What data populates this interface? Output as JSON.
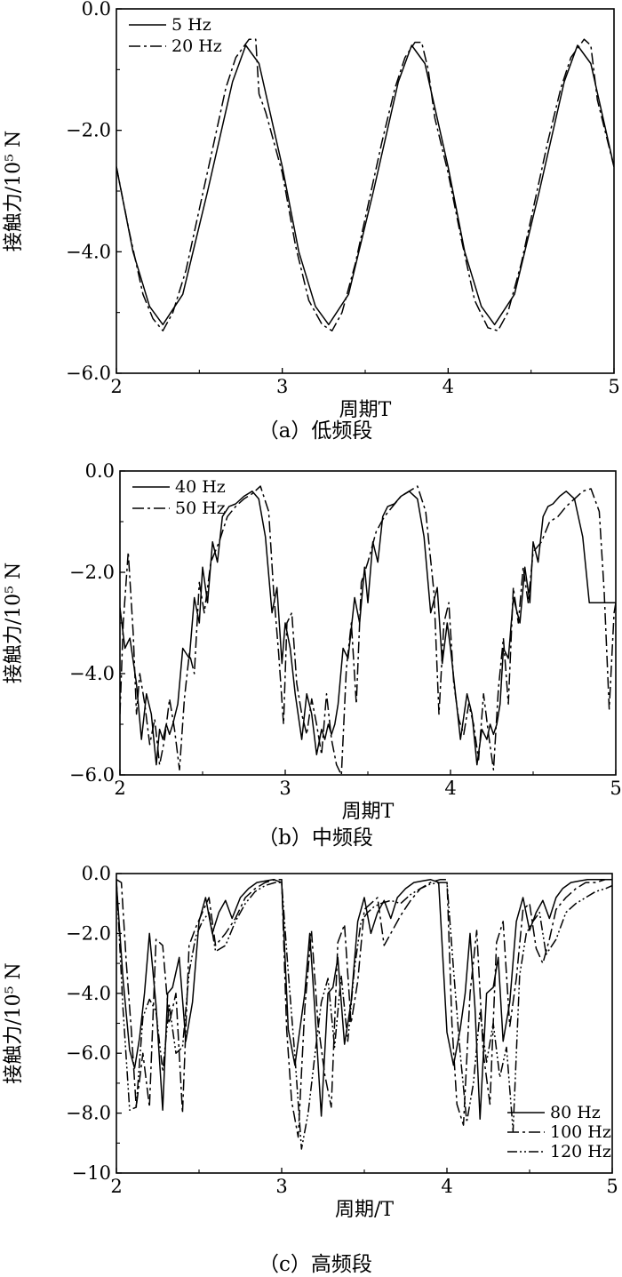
{
  "chart_data": [
    {
      "type": "line",
      "caption": "（a）低频段",
      "xlabel": "周期T",
      "ylabel": "接触力/10⁵ N",
      "xlim": [
        2,
        5
      ],
      "ylim": [
        -6.0,
        0.0
      ],
      "xticks": [
        "2",
        "3",
        "4",
        "5"
      ],
      "yticks": [
        "0.0",
        "−2.0",
        "−4.0",
        "−6.0"
      ],
      "legend_position": "top-left",
      "series": [
        {
          "name": "5 Hz",
          "style": "solid",
          "x": [
            2.0,
            2.1,
            2.2,
            2.28,
            2.4,
            2.55,
            2.7,
            2.78,
            2.86,
            3.0,
            3.1,
            3.2,
            3.28,
            3.4,
            3.55,
            3.7,
            3.78,
            3.86,
            4.0,
            4.1,
            4.2,
            4.28,
            4.4,
            4.55,
            4.7,
            4.78,
            4.86,
            5.0
          ],
          "values": [
            -2.6,
            -4.0,
            -4.9,
            -5.2,
            -4.7,
            -3.0,
            -1.2,
            -0.6,
            -0.9,
            -2.6,
            -4.0,
            -4.9,
            -5.2,
            -4.7,
            -3.0,
            -1.2,
            -0.6,
            -0.9,
            -2.6,
            -4.0,
            -4.9,
            -5.2,
            -4.7,
            -3.0,
            -1.2,
            -0.6,
            -0.9,
            -2.6
          ]
        },
        {
          "name": "20 Hz",
          "style": "dashdot",
          "x": [
            2.0,
            2.08,
            2.16,
            2.22,
            2.28,
            2.34,
            2.42,
            2.5,
            2.58,
            2.66,
            2.72,
            2.8,
            2.84,
            2.86,
            2.9,
            3.0,
            3.08,
            3.16,
            3.24,
            3.3,
            3.36,
            3.44,
            3.52,
            3.6,
            3.68,
            3.74,
            3.8,
            3.84,
            3.88,
            3.92,
            4.0,
            4.08,
            4.16,
            4.24,
            4.3,
            4.36,
            4.44,
            4.52,
            4.6,
            4.68,
            4.74,
            4.82,
            4.86,
            4.9,
            5.0
          ],
          "values": [
            -2.6,
            -3.7,
            -4.7,
            -5.1,
            -5.3,
            -5.0,
            -4.3,
            -3.3,
            -2.3,
            -1.3,
            -0.8,
            -0.5,
            -0.5,
            -1.4,
            -1.7,
            -2.7,
            -3.9,
            -4.8,
            -5.2,
            -5.3,
            -5.0,
            -4.2,
            -3.2,
            -2.2,
            -1.3,
            -0.8,
            -0.55,
            -0.55,
            -1.0,
            -1.8,
            -2.7,
            -3.8,
            -4.8,
            -5.25,
            -5.3,
            -5.0,
            -4.2,
            -3.2,
            -2.2,
            -1.3,
            -0.8,
            -0.5,
            -0.6,
            -1.5,
            -2.6
          ]
        }
      ]
    },
    {
      "type": "line",
      "caption": "（b）中频段",
      "xlabel": "周期T",
      "ylabel": "接触力/10⁵ N",
      "xlim": [
        2,
        5
      ],
      "ylim": [
        -6.0,
        0.0
      ],
      "xticks": [
        "2",
        "3",
        "4",
        "5"
      ],
      "yticks": [
        "0.0",
        "−2.0",
        "−4.0",
        "−6.0"
      ],
      "legend_position": "top-left",
      "series": [
        {
          "name": "40 Hz",
          "style": "solid",
          "x": [
            2.0,
            2.03,
            2.06,
            2.1,
            2.13,
            2.16,
            2.19,
            2.22,
            2.24,
            2.26,
            2.28,
            2.3,
            2.32,
            2.35,
            2.38,
            2.42,
            2.45,
            2.48,
            2.5,
            2.53,
            2.56,
            2.59,
            2.62,
            2.66,
            2.7,
            2.75,
            2.8,
            2.84,
            2.88,
            2.92,
            2.95,
            2.98,
            3.0,
            3.03,
            3.06,
            3.1,
            3.13,
            3.16,
            3.19,
            3.22,
            3.24,
            3.26,
            3.28,
            3.3,
            3.32,
            3.35,
            3.38,
            3.42,
            3.45,
            3.48,
            3.5,
            3.53,
            3.56,
            3.59,
            3.62,
            3.66,
            3.7,
            3.75,
            3.8,
            3.84,
            3.88,
            3.92,
            3.95,
            3.98,
            4.0,
            4.03,
            4.06,
            4.1,
            4.13,
            4.16,
            4.19,
            4.22,
            4.24,
            4.26,
            4.28,
            4.3,
            4.32,
            4.35,
            4.38,
            4.42,
            4.45,
            4.48,
            4.5,
            4.53,
            4.56,
            4.59,
            4.62,
            4.66,
            4.7,
            4.75,
            4.8,
            4.84,
            4.88,
            4.92,
            4.95,
            4.98,
            5.0
          ],
          "values": [
            -2.7,
            -3.5,
            -3.3,
            -4.2,
            -5.3,
            -4.4,
            -4.8,
            -5.8,
            -5.1,
            -5.3,
            -5.0,
            -5.2,
            -5.0,
            -4.6,
            -3.5,
            -3.7,
            -2.5,
            -3.0,
            -1.9,
            -2.6,
            -1.4,
            -1.8,
            -0.9,
            -0.7,
            -0.65,
            -0.5,
            -0.4,
            -0.55,
            -1.3,
            -2.8,
            -2.3,
            -3.8,
            -3.0,
            -3.5,
            -4.4,
            -5.3,
            -4.4,
            -4.8,
            -5.6,
            -5.1,
            -5.3,
            -5.0,
            -5.2,
            -5.0,
            -4.6,
            -3.5,
            -3.7,
            -2.5,
            -3.0,
            -1.9,
            -2.6,
            -1.4,
            -1.8,
            -0.9,
            -0.7,
            -0.65,
            -0.5,
            -0.4,
            -0.55,
            -1.3,
            -2.8,
            -2.3,
            -3.8,
            -3.0,
            -3.5,
            -4.4,
            -5.3,
            -4.4,
            -4.8,
            -5.8,
            -5.1,
            -5.3,
            -5.0,
            -5.2,
            -5.0,
            -4.6,
            -3.5,
            -3.7,
            -2.5,
            -3.0,
            -1.9,
            -2.6,
            -1.4,
            -1.8,
            -0.9,
            -0.7,
            -0.65,
            -0.5,
            -0.4,
            -0.55,
            -1.3,
            -2.6,
            -2.6,
            -2.6,
            -2.6,
            -2.6,
            -2.6
          ]
        },
        {
          "name": "50 Hz",
          "style": "dashdot",
          "x": [
            2.0,
            2.02,
            2.05,
            2.08,
            2.1,
            2.12,
            2.15,
            2.18,
            2.21,
            2.24,
            2.27,
            2.3,
            2.33,
            2.36,
            2.39,
            2.42,
            2.45,
            2.48,
            2.51,
            2.55,
            2.6,
            2.65,
            2.7,
            2.75,
            2.8,
            2.85,
            2.9,
            2.93,
            2.96,
            2.99,
            3.01,
            3.04,
            3.07,
            3.1,
            3.13,
            3.16,
            3.19,
            3.22,
            3.25,
            3.28,
            3.31,
            3.34,
            3.37,
            3.4,
            3.43,
            3.46,
            3.5,
            3.55,
            3.6,
            3.65,
            3.7,
            3.75,
            3.8,
            3.85,
            3.9,
            3.93,
            3.96,
            3.99,
            4.02,
            4.05,
            4.08,
            4.11,
            4.14,
            4.17,
            4.2,
            4.23,
            4.26,
            4.29,
            4.32,
            4.35,
            4.38,
            4.41,
            4.44,
            4.47,
            4.5,
            4.55,
            4.6,
            4.65,
            4.7,
            4.75,
            4.8,
            4.85,
            4.9,
            4.93,
            4.96,
            4.99,
            5.0
          ],
          "values": [
            -4.8,
            -3.0,
            -1.6,
            -3.2,
            -4.8,
            -4.0,
            -4.6,
            -5.4,
            -4.9,
            -5.8,
            -5.3,
            -4.5,
            -5.1,
            -5.9,
            -4.5,
            -3.6,
            -4.0,
            -2.2,
            -2.8,
            -1.8,
            -1.4,
            -0.9,
            -0.7,
            -0.55,
            -0.45,
            -0.3,
            -0.8,
            -2.4,
            -3.6,
            -5.0,
            -3.0,
            -2.8,
            -4.2,
            -4.8,
            -5.2,
            -4.5,
            -5.0,
            -5.6,
            -4.4,
            -5.3,
            -5.8,
            -6.0,
            -3.9,
            -3.0,
            -4.6,
            -2.2,
            -1.8,
            -1.2,
            -0.9,
            -0.7,
            -0.5,
            -0.4,
            -0.3,
            -0.8,
            -2.4,
            -4.8,
            -3.0,
            -2.6,
            -4.2,
            -4.9,
            -5.2,
            -4.6,
            -5.0,
            -5.7,
            -4.4,
            -5.2,
            -5.9,
            -4.3,
            -3.3,
            -4.6,
            -2.3,
            -3.0,
            -1.9,
            -2.6,
            -1.6,
            -1.4,
            -1.0,
            -0.9,
            -0.7,
            -0.55,
            -0.4,
            -0.35,
            -0.8,
            -2.4,
            -4.7,
            -2.8,
            -2.6
          ]
        }
      ]
    },
    {
      "type": "line",
      "caption": "（c）高频段",
      "xlabel": "周期/T",
      "ylabel": "接触力/10⁵ N",
      "xlim": [
        2,
        5
      ],
      "ylim": [
        -10,
        0.0
      ],
      "xticks": [
        "2",
        "3",
        "4",
        "5"
      ],
      "yticks": [
        "0.0",
        "−2.0",
        "−4.0",
        "−6.0",
        "−8.0",
        "−10"
      ],
      "legend_position": "bottom-right",
      "series": [
        {
          "name": "80 Hz",
          "style": "solid",
          "x": [
            2.0,
            2.04,
            2.08,
            2.11,
            2.14,
            2.17,
            2.2,
            2.24,
            2.28,
            2.31,
            2.34,
            2.38,
            2.42,
            2.46,
            2.5,
            2.54,
            2.58,
            2.62,
            2.66,
            2.7,
            2.75,
            2.8,
            2.85,
            2.9,
            2.95,
            3.0,
            3.04,
            3.08,
            3.11,
            3.14,
            3.17,
            3.2,
            3.24,
            3.28,
            3.31,
            3.34,
            3.38,
            3.42,
            3.46,
            3.5,
            3.54,
            3.58,
            3.62,
            3.66,
            3.7,
            3.75,
            3.8,
            3.85,
            3.9,
            3.95,
            4.0,
            4.04,
            4.08,
            4.11,
            4.14,
            4.17,
            4.2,
            4.24,
            4.28,
            4.31,
            4.34,
            4.38,
            4.42,
            4.46,
            4.5,
            4.54,
            4.58,
            4.62,
            4.66,
            4.7,
            4.75,
            4.8,
            4.85,
            4.9,
            4.95,
            5.0
          ],
          "values": [
            -0.3,
            -3.5,
            -5.9,
            -6.5,
            -5.5,
            -4.0,
            -2.0,
            -4.4,
            -7.9,
            -4.0,
            -3.8,
            -2.8,
            -5.6,
            -4.3,
            -1.6,
            -0.8,
            -2.0,
            -1.3,
            -0.9,
            -1.5,
            -0.8,
            -0.5,
            -0.3,
            -0.25,
            -0.2,
            -0.3,
            -5.2,
            -6.4,
            -5.2,
            -4.0,
            -2.0,
            -4.5,
            -8.1,
            -4.0,
            -3.8,
            -2.8,
            -5.7,
            -4.3,
            -1.6,
            -0.8,
            -2.0,
            -1.3,
            -0.9,
            -1.5,
            -0.8,
            -0.5,
            -0.3,
            -0.25,
            -0.2,
            -0.3,
            -5.3,
            -6.4,
            -5.2,
            -4.0,
            -2.0,
            -4.5,
            -8.2,
            -4.0,
            -3.8,
            -2.8,
            -5.6,
            -4.3,
            -1.6,
            -0.8,
            -1.9,
            -1.3,
            -0.9,
            -1.5,
            -0.8,
            -0.5,
            -0.3,
            -0.25,
            -0.2,
            -0.2,
            -0.2,
            -0.2
          ]
        },
        {
          "name": "100 Hz",
          "style": "dashdot",
          "x": [
            2.0,
            2.03,
            2.06,
            2.09,
            2.12,
            2.16,
            2.2,
            2.24,
            2.28,
            2.32,
            2.36,
            2.4,
            2.44,
            2.48,
            2.52,
            2.56,
            2.6,
            2.66,
            2.72,
            2.78,
            2.84,
            2.9,
            2.96,
            3.0,
            3.03,
            3.06,
            3.1,
            3.14,
            3.18,
            3.22,
            3.26,
            3.3,
            3.34,
            3.38,
            3.42,
            3.46,
            3.5,
            3.54,
            3.58,
            3.62,
            3.66,
            3.72,
            3.78,
            3.84,
            3.9,
            3.96,
            4.0,
            4.03,
            4.06,
            4.1,
            4.14,
            4.18,
            4.22,
            4.26,
            4.3,
            4.34,
            4.38,
            4.42,
            4.46,
            4.5,
            4.54,
            4.58,
            4.62,
            4.66,
            4.72,
            4.78,
            4.84,
            4.9,
            4.96,
            5.0
          ],
          "values": [
            -0.2,
            -0.3,
            -3.0,
            -5.2,
            -7.8,
            -6.0,
            -7.8,
            -2.2,
            -2.4,
            -5.0,
            -4.0,
            -8.0,
            -2.4,
            -1.8,
            -1.3,
            -0.8,
            -2.4,
            -2.0,
            -1.5,
            -0.8,
            -0.5,
            -0.3,
            -0.2,
            -0.2,
            -5.2,
            -7.6,
            -8.8,
            -4.5,
            -1.9,
            -5.0,
            -6.7,
            -7.8,
            -2.3,
            -1.7,
            -5.0,
            -3.6,
            -1.2,
            -1.0,
            -0.8,
            -2.4,
            -2.0,
            -1.4,
            -0.9,
            -0.5,
            -0.3,
            -0.2,
            -0.2,
            -5.0,
            -7.7,
            -8.4,
            -4.0,
            -1.9,
            -6.0,
            -7.7,
            -2.3,
            -1.6,
            -5.1,
            -3.5,
            -1.2,
            -1.0,
            -2.5,
            -3.0,
            -2.2,
            -1.2,
            -0.8,
            -0.5,
            -0.3,
            -0.3,
            -0.2,
            -0.2
          ]
        },
        {
          "name": "120 Hz",
          "style": "dashdotdot",
          "x": [
            2.0,
            2.04,
            2.08,
            2.12,
            2.16,
            2.2,
            2.24,
            2.28,
            2.32,
            2.36,
            2.4,
            2.44,
            2.48,
            2.52,
            2.56,
            2.6,
            2.66,
            2.72,
            2.78,
            2.84,
            2.9,
            2.96,
            3.0,
            3.04,
            3.08,
            3.12,
            3.16,
            3.2,
            3.24,
            3.28,
            3.32,
            3.36,
            3.4,
            3.44,
            3.48,
            3.52,
            3.56,
            3.6,
            3.66,
            3.72,
            3.78,
            3.84,
            3.9,
            3.96,
            4.0,
            4.04,
            4.08,
            4.12,
            4.16,
            4.2,
            4.24,
            4.28,
            4.32,
            4.36,
            4.4,
            4.44,
            4.48,
            4.52,
            4.56,
            4.6,
            4.66,
            4.72,
            4.78,
            4.84,
            4.9,
            4.96,
            5.0
          ],
          "values": [
            -0.2,
            -4.5,
            -7.9,
            -7.8,
            -4.8,
            -4.2,
            -4.6,
            -6.6,
            -4.4,
            -6.0,
            -5.8,
            -3.3,
            -2.1,
            -1.6,
            -1.3,
            -2.6,
            -2.4,
            -1.6,
            -1.0,
            -0.6,
            -0.4,
            -0.3,
            -0.3,
            -3.3,
            -6.1,
            -9.2,
            -8.0,
            -6.1,
            -4.3,
            -3.5,
            -5.8,
            -3.4,
            -5.6,
            -3.2,
            -1.6,
            -1.3,
            -1.1,
            -1.0,
            -0.9,
            -1.0,
            -0.7,
            -0.5,
            -0.35,
            -0.3,
            -0.3,
            -3.2,
            -6.0,
            -8.3,
            -7.0,
            -4.6,
            -6.3,
            -5.0,
            -6.8,
            -5.8,
            -8.6,
            -3.4,
            -2.0,
            -1.6,
            -1.3,
            -2.7,
            -2.2,
            -1.3,
            -1.0,
            -0.8,
            -0.6,
            -0.5,
            -0.4
          ]
        }
      ]
    }
  ]
}
